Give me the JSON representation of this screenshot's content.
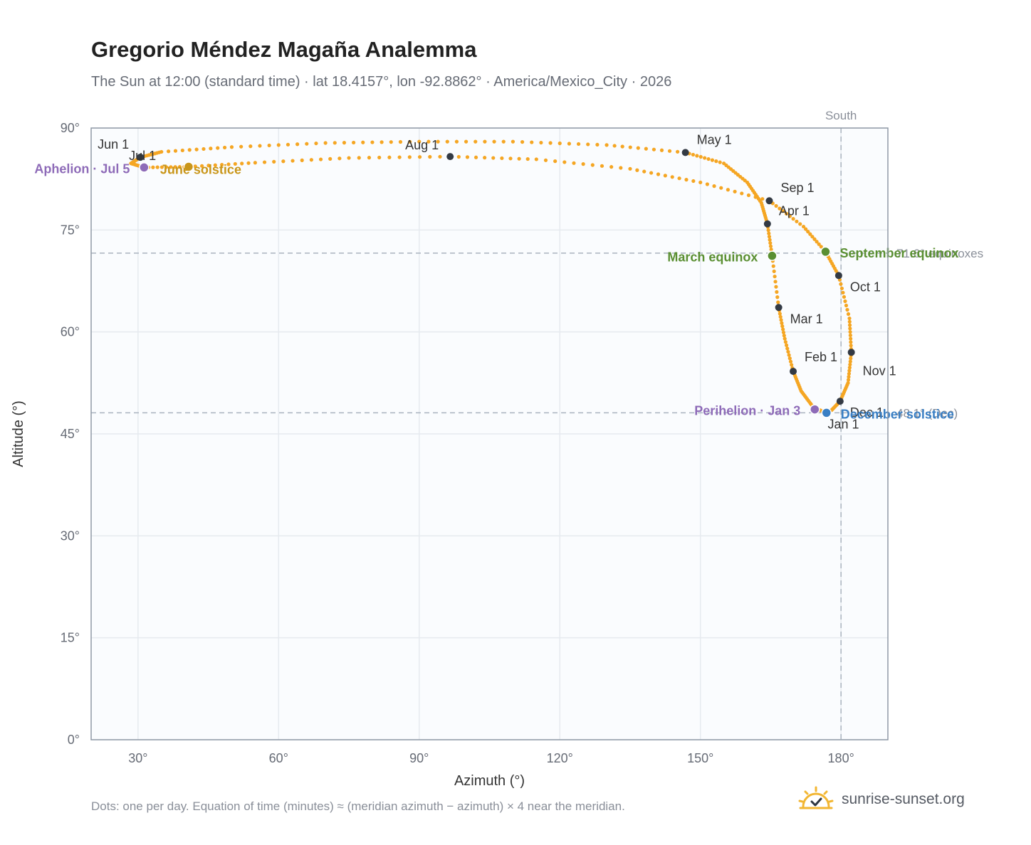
{
  "title": "Gregorio Méndez Magaña Analemma",
  "subtitle": "The Sun at 12:00 (standard time) · lat 18.4157°, lon -92.8862° · America/Mexico_City · 2026",
  "footnote": "Dots: one per day. Equation of time (minutes) ≈ (meridian azimuth − azimuth) × 4 near the meridian.",
  "brand": "sunrise-sunset.org",
  "colors": {
    "path": "#f5a623",
    "month_marker": "#333a44",
    "equinox": "#5a8f32",
    "solstice_june": "#c9961a",
    "solstice_december": "#3a7fc4",
    "apsis": "#8e6bb8",
    "reference_line": "#a9b3bf",
    "grid": "#e6eaef",
    "plot_background": "#fafcfe",
    "frame": "#8f99a6"
  },
  "chart_data": {
    "type": "scatter",
    "xlabel": "Azimuth (°)",
    "ylabel": "Altitude (°)",
    "xlim": [
      20,
      190
    ],
    "ylim": [
      0,
      90
    ],
    "x_ticks": [
      30,
      60,
      90,
      120,
      150,
      180
    ],
    "x_tick_labels": [
      "30°",
      "60°",
      "90°",
      "120°",
      "150°",
      "180°"
    ],
    "y_ticks": [
      0,
      15,
      30,
      45,
      60,
      75,
      90
    ],
    "y_tick_labels": [
      "0°",
      "15°",
      "30°",
      "45°",
      "60°",
      "75°",
      "90°"
    ],
    "grid": true,
    "south_line": {
      "azimuth": 180,
      "label": "South"
    },
    "reference_lines": [
      {
        "altitude": 71.6,
        "label": "71.6° equinoxes"
      },
      {
        "altitude": 48.1,
        "label": "48.1° (Dec)"
      }
    ],
    "month_markers": [
      {
        "label": "Jan 1",
        "az": 176.7,
        "alt": 48.1
      },
      {
        "label": "Feb 1",
        "az": 169.8,
        "alt": 54.2
      },
      {
        "label": "Mar 1",
        "az": 166.7,
        "alt": 63.6
      },
      {
        "label": "Apr 1",
        "az": 164.3,
        "alt": 75.9
      },
      {
        "label": "May 1",
        "az": 146.8,
        "alt": 86.4
      },
      {
        "label": "Jun 1",
        "az": 30.5,
        "alt": 85.7
      },
      {
        "label": "Jul 1",
        "az": 30.5,
        "alt": 85.7
      },
      {
        "label": "Aug 1",
        "az": 96.6,
        "alt": 85.8
      },
      {
        "label": "Sep 1",
        "az": 164.7,
        "alt": 79.3
      },
      {
        "label": "Oct 1",
        "az": 179.5,
        "alt": 68.3
      },
      {
        "label": "Nov 1",
        "az": 182.2,
        "alt": 57.0
      },
      {
        "label": "Dec 1",
        "az": 179.8,
        "alt": 49.8
      }
    ],
    "special_points": [
      {
        "label": "March equinox",
        "az": 165.3,
        "alt": 71.2,
        "kind": "equinox"
      },
      {
        "label": "September equinox",
        "az": 176.7,
        "alt": 71.8,
        "kind": "equinox"
      },
      {
        "label": "June solstice",
        "az": 40.8,
        "alt": 84.3,
        "kind": "solstice_june"
      },
      {
        "label": "December solstice",
        "az": 176.9,
        "alt": 48.1,
        "kind": "solstice_december"
      },
      {
        "label": "Aphelion · Jul 5",
        "az": 31.3,
        "alt": 84.2,
        "kind": "apsis"
      },
      {
        "label": "Perihelion · Jan 3",
        "az": 174.4,
        "alt": 48.6,
        "kind": "apsis"
      }
    ],
    "analemma_path": [
      {
        "az": 176.7,
        "alt": 48.1
      },
      {
        "az": 174.0,
        "alt": 49.0
      },
      {
        "az": 171.5,
        "alt": 51.3
      },
      {
        "az": 169.8,
        "alt": 54.2
      },
      {
        "az": 168.0,
        "alt": 59.0
      },
      {
        "az": 166.7,
        "alt": 63.6
      },
      {
        "az": 165.3,
        "alt": 71.2
      },
      {
        "az": 164.3,
        "alt": 75.9
      },
      {
        "az": 163.0,
        "alt": 79.0
      },
      {
        "az": 160.0,
        "alt": 82.0
      },
      {
        "az": 155.0,
        "alt": 84.8
      },
      {
        "az": 146.8,
        "alt": 86.4
      },
      {
        "az": 130.0,
        "alt": 87.5
      },
      {
        "az": 110.0,
        "alt": 88.0
      },
      {
        "az": 90.0,
        "alt": 88.0
      },
      {
        "az": 70.0,
        "alt": 87.8
      },
      {
        "az": 50.0,
        "alt": 87.2
      },
      {
        "az": 35.0,
        "alt": 86.5
      },
      {
        "az": 30.5,
        "alt": 85.7
      },
      {
        "az": 28.5,
        "alt": 84.8
      },
      {
        "az": 31.3,
        "alt": 84.2
      },
      {
        "az": 40.8,
        "alt": 84.3
      },
      {
        "az": 55.0,
        "alt": 84.9
      },
      {
        "az": 75.0,
        "alt": 85.6
      },
      {
        "az": 96.6,
        "alt": 85.8
      },
      {
        "az": 115.0,
        "alt": 85.4
      },
      {
        "az": 135.0,
        "alt": 84.0
      },
      {
        "az": 150.0,
        "alt": 82.0
      },
      {
        "az": 164.7,
        "alt": 79.3
      },
      {
        "az": 172.0,
        "alt": 75.5
      },
      {
        "az": 176.7,
        "alt": 71.8
      },
      {
        "az": 179.5,
        "alt": 68.3
      },
      {
        "az": 181.8,
        "alt": 62.0
      },
      {
        "az": 182.2,
        "alt": 57.0
      },
      {
        "az": 181.5,
        "alt": 52.5
      },
      {
        "az": 179.8,
        "alt": 49.8
      },
      {
        "az": 178.0,
        "alt": 48.5
      },
      {
        "az": 176.7,
        "alt": 48.1
      }
    ]
  }
}
